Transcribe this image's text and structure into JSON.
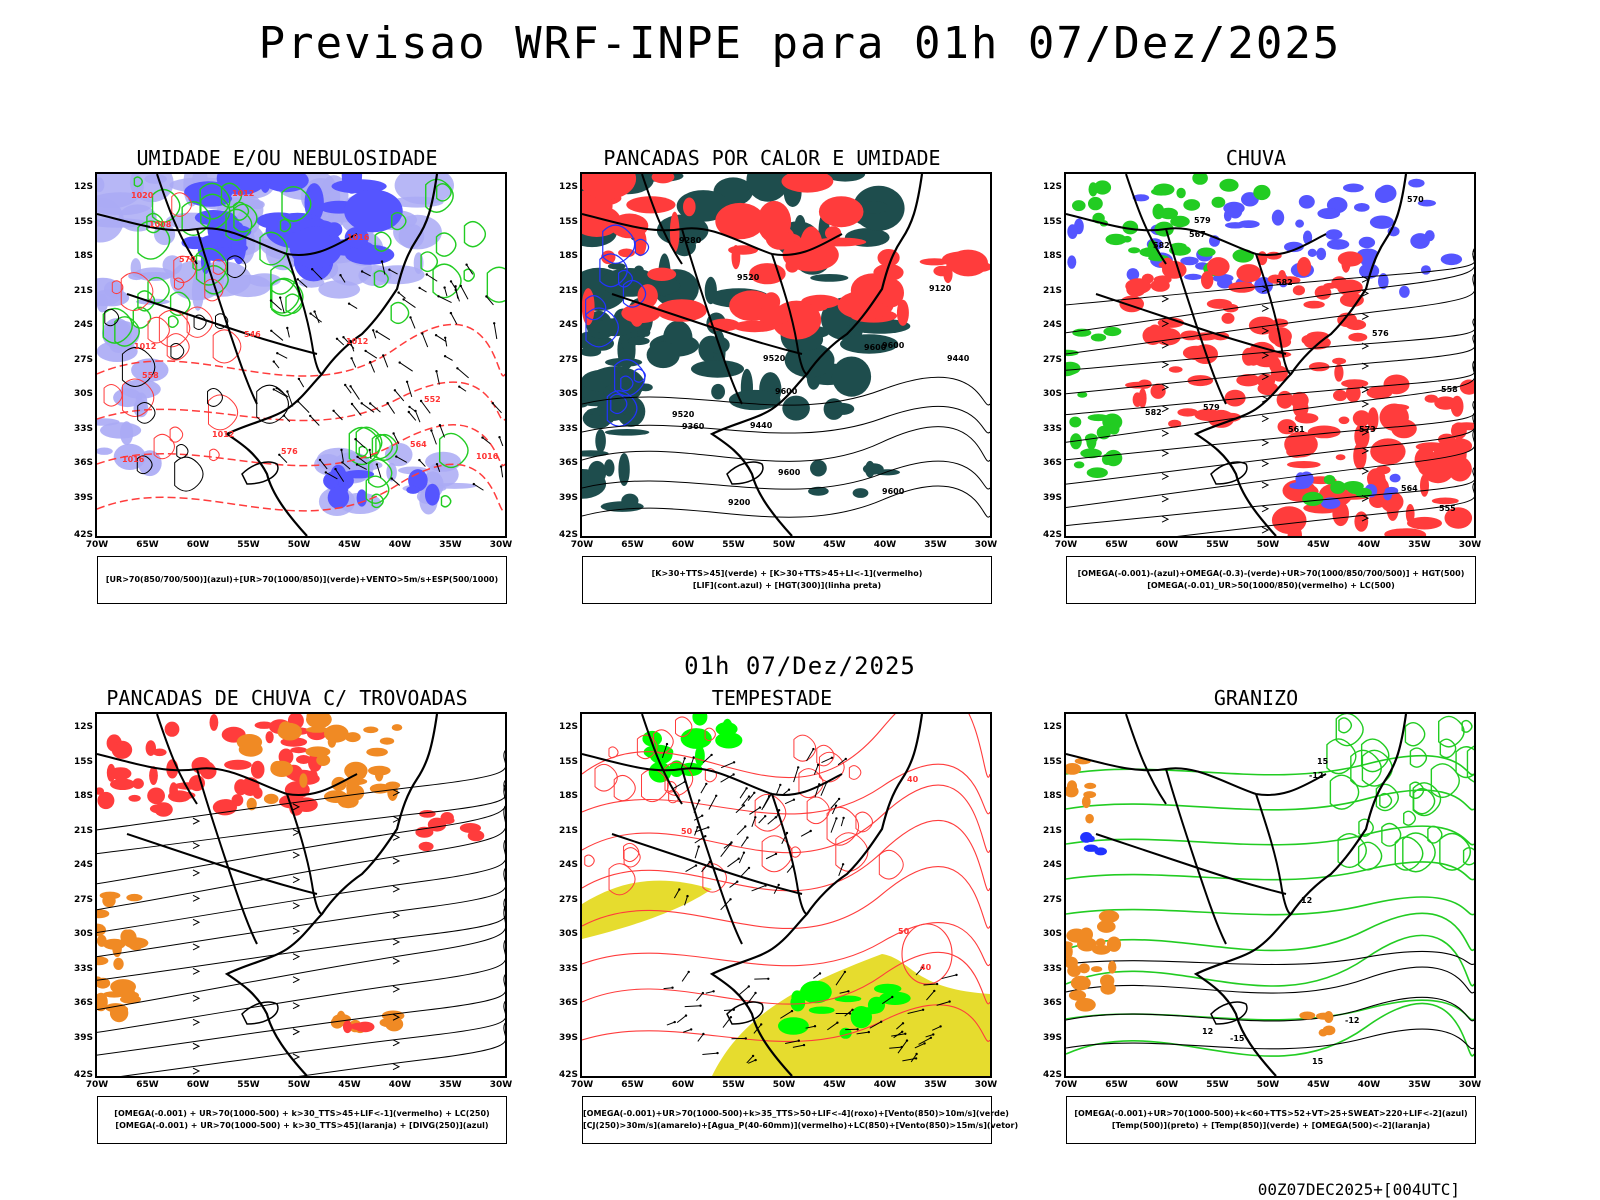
{
  "page": {
    "main_title": "Previsao WRF-INPE  para 01h 07/Dez/2025",
    "mid_title": "01h 07/Dez/2025",
    "footer": "00Z07DEC2025+[004UTC]"
  },
  "axes": {
    "lat_ticks": [
      "12S",
      "15S",
      "18S",
      "21S",
      "24S",
      "27S",
      "30S",
      "33S",
      "36S",
      "39S",
      "42S"
    ],
    "lon_ticks": [
      "70W",
      "65W",
      "60W",
      "55W",
      "50W",
      "45W",
      "40W",
      "35W",
      "30W"
    ]
  },
  "colors": {
    "blue": "#5555ff",
    "light_blue": "#aaaaf5",
    "green": "#22cc22",
    "red": "#ff3c3c",
    "dark_teal": "#1e4d4d",
    "orange": "#f08a24",
    "yellow": "#e6dc2e",
    "bright_green": "#00ff00"
  },
  "panels": [
    {
      "title": "UMIDADE E/OU NEBULOSIDADE",
      "legend": [
        "[UR>70(850/700/500)](azul)+[UR>70(1000/850)](verde)+VENTO>5m/s+ESP(500/1000)"
      ],
      "contour_labels": [
        "1008",
        "1012",
        "1012",
        "1016",
        "1016",
        "1020",
        "1012",
        "1016",
        "1012",
        "570",
        "576",
        "564",
        "558",
        "546",
        "552"
      ]
    },
    {
      "title": "PANCADAS POR CALOR E UMIDADE",
      "legend": [
        "[K>30+TTS>45](verde) + [K>30+TTS>45+LI<-1](vermelho)",
        "[LIF](cont.azul) + [HGT(300)](linha preta)"
      ],
      "contour_labels": [
        "9600",
        "9600",
        "9600",
        "9600",
        "9600",
        "9520",
        "9520",
        "9520",
        "9440",
        "9440",
        "9360",
        "9280",
        "9200",
        "9120"
      ]
    },
    {
      "title": "CHUVA",
      "legend": [
        "[OMEGA(-0.001)-(azul)+OMEGA(-0.3)-(verde)+UR>70(1000/850/700/500)] + HGT(500)",
        "[OMEGA(-0.01)_UR>50(1000/850)(vermelho) + LC(500)"
      ],
      "contour_labels": [
        "582",
        "582",
        "582",
        "579",
        "579",
        "576",
        "573",
        "570",
        "567",
        "564",
        "561",
        "558",
        "555"
      ]
    },
    {
      "title": "PANCADAS DE CHUVA C/ TROVOADAS",
      "legend": [
        "[OMEGA(-0.001) + UR>70(1000-500) + k>30_TTS>45+LIF<-1](vermelho) + LC(250)",
        "[OMEGA(-0.001) + UR>70(1000-500) + k>30_TTS>45](laranja) + [DIVG(250)](azul)"
      ],
      "contour_labels": []
    },
    {
      "title": "TEMPESTADE",
      "legend": [
        "[OMEGA(-0.001)+UR>70(1000-500)+k>35_TTS>50+LIF<-4](roxo)+[Vento(850)>10m/s](verde)",
        "[CJ(250)>30m/s](amarelo)+[Agua_P(40-60mm)](vermelho)+LC(850)+[Vento(850)>15m/s](vetor)"
      ],
      "contour_labels": [
        "40",
        "40",
        "50",
        "50"
      ]
    },
    {
      "title": "GRANIZO",
      "legend": [
        "[OMEGA(-0.001)+UR>70(1000-500)+k<60+TTS>52+VT>25+SWEAT>220+LIF<-2](azul)",
        "[Temp(500)](preto) + [Temp(850)](verde) + [OMEGA(500)<-2](laranja)"
      ],
      "contour_labels": [
        "12",
        "12",
        "15",
        "15",
        "-12",
        "-12",
        "-15"
      ]
    }
  ]
}
